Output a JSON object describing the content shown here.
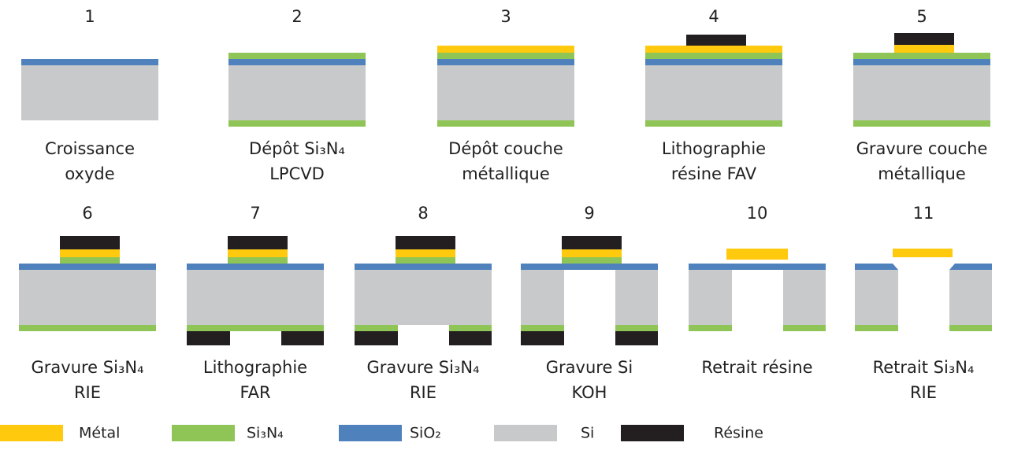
{
  "steps": [
    {
      "number": "1",
      "label": [
        "Croissance",
        "oxyde"
      ]
    },
    {
      "number": "2",
      "label": [
        "Dépôt Si₃N₄",
        "LPCVD"
      ]
    },
    {
      "number": "3",
      "label": [
        "Dépôt couche",
        "métallique"
      ]
    },
    {
      "number": "4",
      "label": [
        "Lithographie",
        "résine FAV"
      ]
    },
    {
      "number": "5",
      "label": [
        "Gravure couche",
        "métallique"
      ]
    },
    {
      "number": "6",
      "label": [
        "Gravure Si₃N₄",
        "RIE"
      ]
    },
    {
      "number": "7",
      "label": [
        "Lithographie",
        "FAR"
      ]
    },
    {
      "number": "8",
      "label": [
        "Gravure Si₃N₄",
        "RIE"
      ]
    },
    {
      "number": "9",
      "label": [
        "Gravure Si",
        "KOH"
      ]
    },
    {
      "number": "10",
      "label": [
        "Retrait résine"
      ]
    },
    {
      "number": "11",
      "label": [
        "Retrait Si₃N₄",
        "RIE"
      ]
    }
  ],
  "legend": [
    {
      "label": "Métal",
      "color": "#ffc90e"
    },
    {
      "label": "Si₃N₄",
      "color": "#8fc456"
    },
    {
      "label": "SiO₂",
      "color": "#4f81bd"
    },
    {
      "label": "Si",
      "color": "#c8c9cb"
    },
    {
      "label": "Résine",
      "color": "#231f20"
    }
  ]
}
